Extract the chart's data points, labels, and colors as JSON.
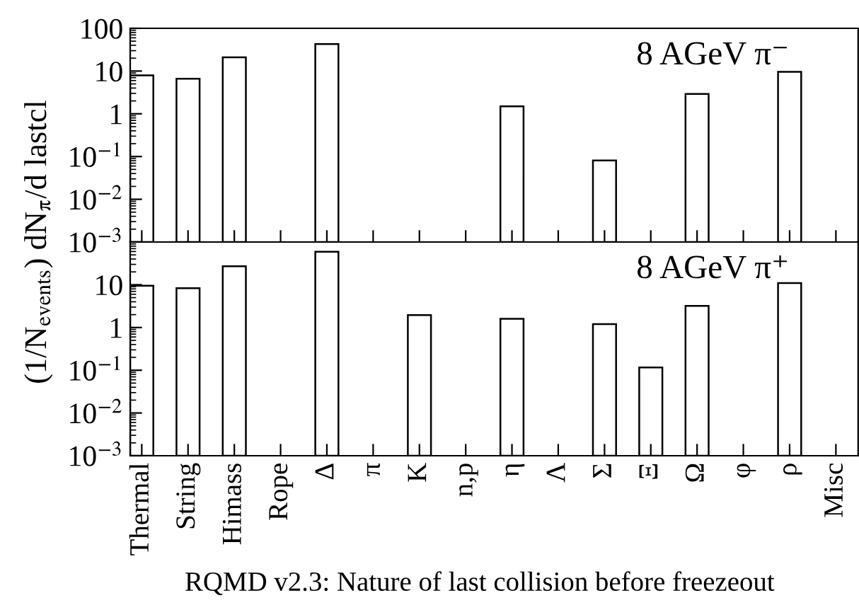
{
  "chart_data": [
    {
      "type": "bar",
      "ylabel": "(1/N$_{events}$) dN$_{π}$/d lastcl",
      "annotations": [
        "8 AGeV π⁻"
      ],
      "categories": [
        null,
        null,
        null,
        null,
        null,
        null,
        null,
        null,
        null,
        null,
        null,
        null,
        null,
        null,
        null,
        null
      ],
      "values": [
        7.9,
        6.6,
        21,
        null,
        43,
        null,
        null,
        null,
        1.5,
        null,
        0.08,
        null,
        2.9,
        null,
        9.6,
        null
      ],
      "color": "#ffffff",
      "log": "y",
      "ylim": [
        0.001,
        100
      ],
      "yticks": [
        {
          "value": 0.001,
          "label": "10$^{−3}$"
        },
        {
          "value": 0.01,
          "label": "10$^{−2}$"
        },
        {
          "value": 0.1,
          "label": "10$^{−1}$"
        },
        1,
        10,
        100
      ],
      "tick_labels": "y",
      "grid": false,
      "legend": false
    },
    {
      "type": "bar",
      "xlabel": "RQMD v2.3: Nature of last collision before freezeout",
      "annotations": [
        "8 AGeV π⁺"
      ],
      "categories": [
        "Thermal",
        "String",
        "Himass",
        "Rope",
        "Δ",
        "π",
        "K",
        "n,p",
        "η",
        "Λ",
        "Σ",
        "Ξ",
        "Ω",
        "φ",
        "ρ",
        "Misc"
      ],
      "values": [
        9.5,
        8.3,
        27,
        null,
        59,
        null,
        1.95,
        null,
        1.6,
        null,
        1.2,
        0.115,
        3.2,
        null,
        11,
        null
      ],
      "color": "#ffffff",
      "log": "y",
      "ylim": [
        0.001,
        100
      ],
      "yticks": [
        {
          "value": 0.001,
          "label": "10$^{−3}$"
        },
        {
          "value": 0.01,
          "label": "10$^{−2}$"
        },
        {
          "value": 0.1,
          "label": "10$^{−1}$"
        },
        1,
        10,
        {
          "value": 100,
          "label": null
        }
      ],
      "grid": false,
      "legend": false
    }
  ]
}
